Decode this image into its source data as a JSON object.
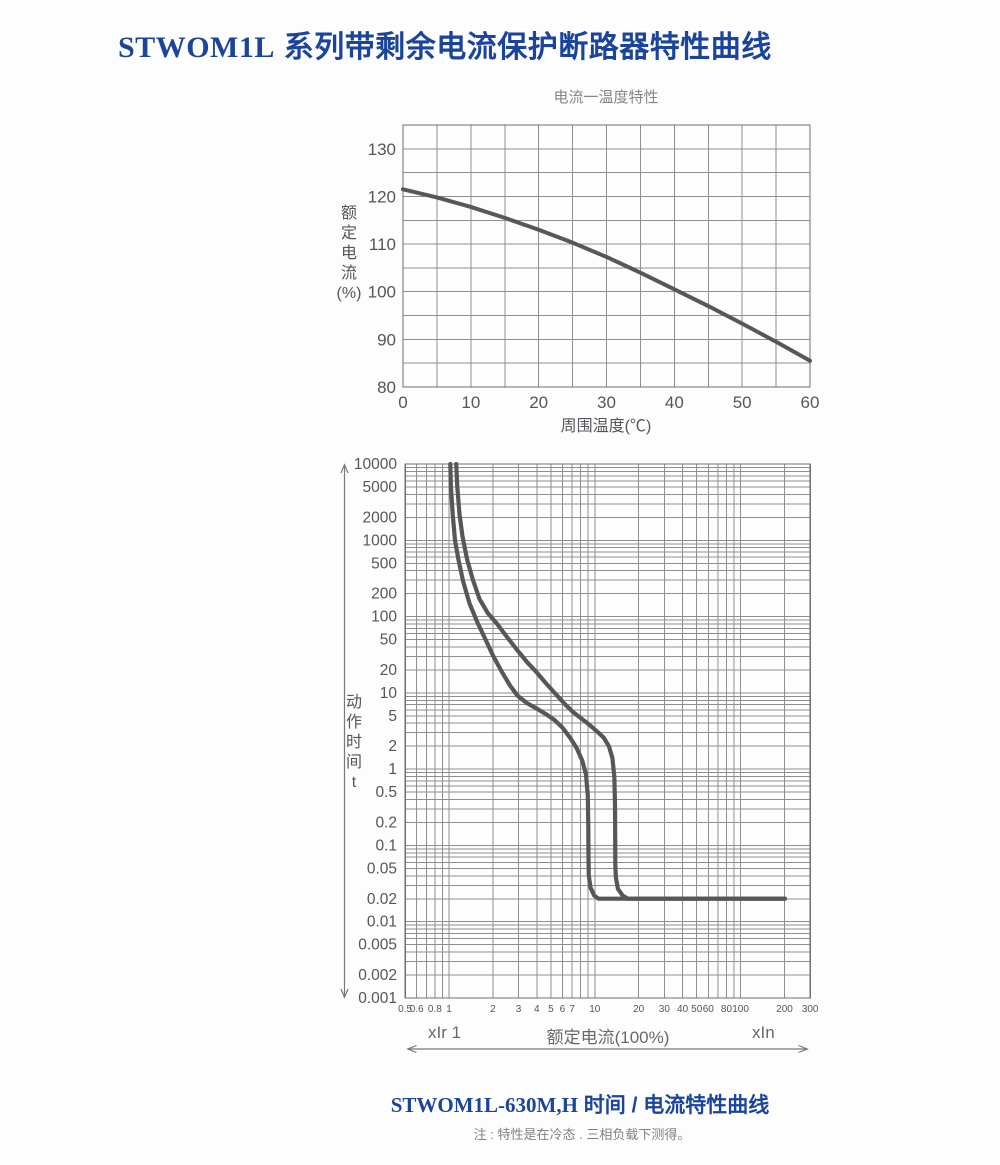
{
  "page": {
    "title_latin": "STWOM1L",
    "title_cn": " 系列带剩余电流保护断路器特性曲线",
    "caption_latin": "STWOM1L-630M,H",
    "caption_cn": " 时间 / 电流特性曲线",
    "note": "注 : 特性是在冷态 . 三相负载下测得。",
    "accent_color": "#1b449b",
    "curve_color": "#57575a",
    "grid_color": "#8d8e90"
  },
  "chart_data": [
    {
      "type": "line",
      "title": "电流一温度特性",
      "xlabel": "周围温度(℃)",
      "ylabel": "额定电流(%)",
      "xlim": [
        0,
        60
      ],
      "ylim": [
        80,
        135
      ],
      "xticks": [
        0,
        10,
        20,
        30,
        40,
        50,
        60
      ],
      "yticks": [
        130,
        120,
        110,
        100,
        90,
        80
      ],
      "grid_step_x": 5,
      "grid_step_y": 5,
      "grid": "on",
      "legend": "none",
      "series": [
        {
          "name": "rated-current-vs-ambient-temperature",
          "x": [
            0,
            5,
            10,
            15,
            20,
            25,
            30,
            35,
            40,
            45,
            50,
            55,
            60
          ],
          "y": [
            121.5,
            119.8,
            117.8,
            115.5,
            113,
            110.3,
            107.3,
            104,
            100.5,
            97,
            93.3,
            89.5,
            85.5
          ]
        }
      ]
    },
    {
      "type": "line",
      "xscale": "log",
      "yscale": "log",
      "xlabel": "额定电流(100%)",
      "xlabel_left": "xIr 1",
      "xlabel_right": "xIn",
      "ylabel": "动作时间 t",
      "xlim": [
        0.5,
        300
      ],
      "ylim": [
        0.001,
        10000
      ],
      "xticks": [
        0.5,
        0.6,
        0.8,
        1,
        2,
        3,
        4,
        5,
        6,
        7,
        10,
        20,
        30,
        40,
        50,
        60,
        80,
        100,
        200,
        300
      ],
      "yticks": [
        10000,
        5000,
        2000,
        1000,
        500,
        200,
        100,
        50,
        20,
        10,
        5,
        2,
        1,
        0.5,
        0.2,
        0.1,
        0.05,
        0.02,
        0.01,
        0.005,
        0.002,
        0.001
      ],
      "grid": "on",
      "legend": "none",
      "series": [
        {
          "name": "trip-time-min",
          "points": [
            [
              1.02,
              10000
            ],
            [
              1.03,
              5000
            ],
            [
              1.06,
              2200
            ],
            [
              1.1,
              1000
            ],
            [
              1.16,
              560
            ],
            [
              1.25,
              290
            ],
            [
              1.38,
              150
            ],
            [
              1.56,
              85
            ],
            [
              1.78,
              50
            ],
            [
              2.0,
              31
            ],
            [
              2.3,
              19
            ],
            [
              2.62,
              12.5
            ],
            [
              2.95,
              9.2
            ],
            [
              3.4,
              7.4
            ],
            [
              3.95,
              6.3
            ],
            [
              4.6,
              5.3
            ],
            [
              5.3,
              4.4
            ],
            [
              6.0,
              3.5
            ],
            [
              6.75,
              2.6
            ],
            [
              7.5,
              1.9
            ],
            [
              8.2,
              1.3
            ],
            [
              8.7,
              0.85
            ],
            [
              8.95,
              0.45
            ],
            [
              9.02,
              0.18
            ],
            [
              9.05,
              0.07
            ],
            [
              9.1,
              0.04
            ],
            [
              9.35,
              0.028
            ],
            [
              9.9,
              0.022
            ],
            [
              10.6,
              0.02
            ],
            [
              200,
              0.02
            ]
          ]
        },
        {
          "name": "trip-time-max",
          "points": [
            [
              1.12,
              10000
            ],
            [
              1.14,
              5000
            ],
            [
              1.18,
              2200
            ],
            [
              1.24,
              1100
            ],
            [
              1.33,
              560
            ],
            [
              1.46,
              300
            ],
            [
              1.62,
              170
            ],
            [
              1.85,
              110
            ],
            [
              2.14,
              80
            ],
            [
              2.5,
              54
            ],
            [
              2.95,
              36
            ],
            [
              3.45,
              25
            ],
            [
              3.95,
              19
            ],
            [
              4.6,
              13.5
            ],
            [
              5.4,
              9.6
            ],
            [
              6.2,
              7.2
            ],
            [
              7.1,
              5.6
            ],
            [
              8.1,
              4.6
            ],
            [
              9.2,
              3.8
            ],
            [
              10.4,
              3.1
            ],
            [
              11.5,
              2.6
            ],
            [
              12.5,
              2.0
            ],
            [
              13.2,
              1.4
            ],
            [
              13.6,
              0.8
            ],
            [
              13.75,
              0.35
            ],
            [
              13.8,
              0.12
            ],
            [
              13.82,
              0.055
            ],
            [
              13.95,
              0.038
            ],
            [
              14.4,
              0.027
            ],
            [
              15.5,
              0.022
            ],
            [
              16.8,
              0.02
            ],
            [
              202,
              0.02
            ]
          ]
        }
      ]
    }
  ]
}
